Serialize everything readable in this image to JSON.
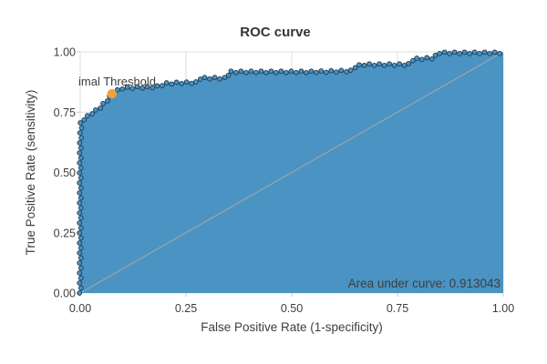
{
  "title": "ROC curve",
  "axes": {
    "x": {
      "label": "False Positive Rate (1-specificity)",
      "ticks": [
        "0.00",
        "0.25",
        "0.50",
        "0.75",
        "1.00"
      ]
    },
    "y": {
      "label": "True Positive Rate (sensitivity)",
      "ticks": [
        "0.00",
        "0.25",
        "0.50",
        "0.75",
        "1.00"
      ]
    }
  },
  "annotations": {
    "threshold_label": "imal Threshold",
    "auc_label": "Area under curve: 0.913043"
  },
  "colors": {
    "curve_fill": "#4b93c3",
    "marker_stroke": "#1d3950",
    "optimal_point": "#f2a232",
    "diagonal": "#a8a8a8",
    "grid": "#dcdcdc",
    "tick": "#c9c9c9",
    "text": "#3d3d3d",
    "title": "#33333d"
  },
  "chart_data": {
    "type": "line",
    "title": "ROC curve",
    "xlabel": "False Positive Rate (1-specificity)",
    "ylabel": "True Positive Rate (sensitivity)",
    "xlim": [
      0,
      1
    ],
    "ylim": [
      0,
      1
    ],
    "xticks": [
      0,
      0.25,
      0.5,
      0.75,
      1.0
    ],
    "yticks": [
      0,
      0.25,
      0.5,
      0.75,
      1.0
    ],
    "grid": true,
    "auc": 0.913043,
    "optimal_threshold_point": {
      "fpr": 0.075,
      "tpr": 0.826
    },
    "diagonal_reference": [
      [
        0,
        0
      ],
      [
        1,
        1
      ]
    ],
    "roc_points": [
      [
        0.0,
        0.0
      ],
      [
        0.0,
        0.611
      ],
      [
        0.002,
        0.713
      ],
      [
        0.017,
        0.732
      ],
      [
        0.028,
        0.747
      ],
      [
        0.039,
        0.758
      ],
      [
        0.05,
        0.774
      ],
      [
        0.06,
        0.792
      ],
      [
        0.069,
        0.811
      ],
      [
        0.075,
        0.826
      ],
      [
        0.086,
        0.838
      ],
      [
        0.099,
        0.849
      ],
      [
        0.134,
        0.853
      ],
      [
        0.166,
        0.853
      ],
      [
        0.188,
        0.857
      ],
      [
        0.198,
        0.868
      ],
      [
        0.241,
        0.872
      ],
      [
        0.274,
        0.872
      ],
      [
        0.284,
        0.891
      ],
      [
        0.345,
        0.891
      ],
      [
        0.353,
        0.917
      ],
      [
        0.554,
        0.917
      ],
      [
        0.64,
        0.921
      ],
      [
        0.651,
        0.94
      ],
      [
        0.668,
        0.947
      ],
      [
        0.776,
        0.947
      ],
      [
        0.787,
        0.97
      ],
      [
        0.836,
        0.974
      ],
      [
        0.847,
        0.996
      ],
      [
        1.0,
        0.996
      ],
      [
        1.0,
        1.0
      ]
    ]
  }
}
